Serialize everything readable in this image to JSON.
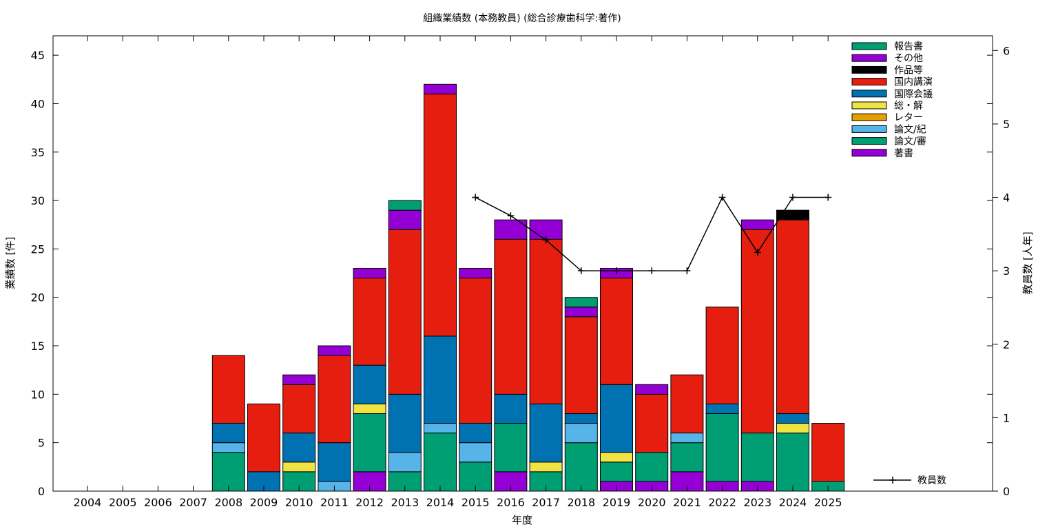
{
  "chart_data": {
    "type": "bar",
    "stacked": true,
    "title": "組織業績数 (本務教員) (総合診療歯科学:著作)",
    "xlabel": "年度",
    "ylabel": "業績数 [件]",
    "y2label": "教員数 [人年]",
    "ylim": [
      0,
      47
    ],
    "y2lim": [
      0,
      6.2
    ],
    "yticks": [
      0,
      5,
      10,
      15,
      20,
      25,
      30,
      35,
      40,
      45
    ],
    "y2ticks": [
      0,
      1,
      2,
      3,
      4,
      5,
      6
    ],
    "legend_position": "top-right",
    "categories": [
      "2004",
      "2005",
      "2006",
      "2007",
      "2008",
      "2009",
      "2010",
      "2011",
      "2012",
      "2013",
      "2014",
      "2015",
      "2016",
      "2017",
      "2018",
      "2019",
      "2020",
      "2021",
      "2022",
      "2023",
      "2024",
      "2025"
    ],
    "series": [
      {
        "name": "著書",
        "color": "#9400d3",
        "values": [
          0,
          0,
          0,
          0,
          0,
          0,
          0,
          0,
          2,
          0,
          0,
          0,
          2,
          0,
          0,
          1,
          1,
          2,
          1,
          1,
          0,
          0
        ]
      },
      {
        "name": "論文/審",
        "color": "#009e73",
        "values": [
          0,
          0,
          0,
          0,
          4,
          0,
          2,
          0,
          6,
          2,
          6,
          3,
          5,
          2,
          5,
          2,
          3,
          3,
          7,
          5,
          6,
          1
        ]
      },
      {
        "name": "論文/紀",
        "color": "#56b4e9",
        "values": [
          0,
          0,
          0,
          0,
          1,
          0,
          0,
          1,
          0,
          2,
          1,
          2,
          0,
          0,
          2,
          0,
          0,
          1,
          0,
          0,
          0,
          0
        ]
      },
      {
        "name": "レター",
        "color": "#e69f00",
        "values": [
          0,
          0,
          0,
          0,
          0,
          0,
          0,
          0,
          0,
          0,
          0,
          0,
          0,
          0,
          0,
          0,
          0,
          0,
          0,
          0,
          0,
          0
        ]
      },
      {
        "name": "総・解",
        "color": "#f0e442",
        "values": [
          0,
          0,
          0,
          0,
          0,
          0,
          1,
          0,
          1,
          0,
          0,
          0,
          0,
          1,
          0,
          1,
          0,
          0,
          0,
          0,
          1,
          0
        ]
      },
      {
        "name": "国際会議",
        "color": "#0072b2",
        "values": [
          0,
          0,
          0,
          0,
          2,
          2,
          3,
          4,
          4,
          6,
          9,
          2,
          3,
          6,
          1,
          7,
          0,
          0,
          1,
          0,
          1,
          0
        ]
      },
      {
        "name": "国内講演",
        "color": "#e51e10",
        "values": [
          0,
          0,
          0,
          0,
          7,
          7,
          5,
          9,
          9,
          17,
          25,
          15,
          16,
          17,
          10,
          11,
          6,
          6,
          10,
          21,
          20,
          6
        ]
      },
      {
        "name": "作品等",
        "color": "#000000",
        "values": [
          0,
          0,
          0,
          0,
          0,
          0,
          0,
          0,
          0,
          0,
          0,
          0,
          0,
          0,
          0,
          0,
          0,
          0,
          0,
          0,
          1,
          0
        ]
      },
      {
        "name": "その他",
        "color": "#9400d3",
        "values": [
          0,
          0,
          0,
          0,
          0,
          0,
          1,
          1,
          1,
          2,
          1,
          1,
          2,
          2,
          1,
          1,
          1,
          0,
          0,
          1,
          0,
          0
        ]
      },
      {
        "name": "報告書",
        "color": "#009e73",
        "values": [
          0,
          0,
          0,
          0,
          0,
          0,
          0,
          0,
          0,
          1,
          0,
          0,
          0,
          0,
          1,
          0,
          0,
          0,
          0,
          0,
          0,
          0
        ]
      }
    ],
    "line": {
      "name": "教員数",
      "axis": "y2",
      "x": [
        "2015",
        "2016",
        "2017",
        "2018",
        "2019",
        "2020",
        "2021",
        "2022",
        "2023",
        "2024",
        "2025"
      ],
      "values": [
        4,
        3.75,
        3.42,
        3,
        3,
        3,
        3,
        4,
        3.25,
        4,
        4
      ]
    }
  }
}
